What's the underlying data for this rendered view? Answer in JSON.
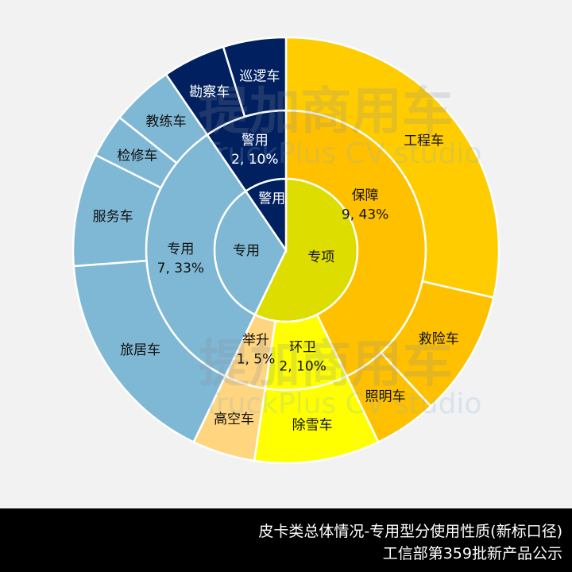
{
  "chart_data": {
    "type": "sunburst",
    "title": "皮卡类总体情况-专用型分使用性质(新标口径)",
    "subtitle": "工信部第359批新产品公示",
    "center": [
      360,
      315
    ],
    "radii": {
      "inner": 90,
      "middle": 176,
      "outer": 268
    },
    "total": 21,
    "levels": [
      {
        "name": "专项",
        "color": "#dddd00",
        "label_color": "#111111",
        "children": [
          {
            "name": "保障",
            "value": 9,
            "pct": "43%",
            "label": "9, 43%",
            "color": "#ffc000",
            "children": [
              {
                "name": "工程车",
                "value": 6,
                "color": "#ffcc00"
              },
              {
                "name": "救险车",
                "value": 2,
                "color": "#ffc000"
              },
              {
                "name": "照明车",
                "value": 1,
                "color": "#ffc000"
              }
            ]
          },
          {
            "name": "环卫",
            "value": 2,
            "pct": "10%",
            "label": "2, 10%",
            "color": "#ffff00",
            "children": [
              {
                "name": "除雪车",
                "value": 2,
                "color": "#ffff00"
              }
            ]
          },
          {
            "name": "举升",
            "value": 1,
            "pct": "5%",
            "label": "1, 5%",
            "color": "#ffd580",
            "children": [
              {
                "name": "高空车",
                "value": 1,
                "color": "#ffd580"
              }
            ]
          }
        ]
      },
      {
        "name": "专用",
        "color": "#7fb8d4",
        "label_color": "#111111",
        "children": [
          {
            "name": "专用",
            "value": 7,
            "pct": "33%",
            "label": "7, 33%",
            "color": "#7fb8d4",
            "children": [
              {
                "name": "旅居车",
                "value": 3.5,
                "color": "#7fb8d4"
              },
              {
                "name": "服务车",
                "value": 1.8,
                "color": "#7fb8d4"
              },
              {
                "name": "检修车",
                "value": 0.7,
                "color": "#7fb8d4"
              },
              {
                "name": "教练车",
                "value": 1,
                "color": "#7fb8d4"
              }
            ]
          }
        ]
      },
      {
        "name": "警用",
        "color": "#002060",
        "label_color": "#ffffff",
        "children": [
          {
            "name": "警用",
            "value": 2,
            "pct": "10%",
            "label": "2, 10%",
            "color": "#002060",
            "children": [
              {
                "name": "勘察车",
                "value": 1,
                "color": "#002060"
              },
              {
                "name": "巡逻车",
                "value": 1,
                "color": "#002060"
              }
            ]
          }
        ]
      }
    ],
    "watermark": {
      "cn": "提加商用车",
      "en": "TruckPlus CV studio"
    }
  },
  "footer": {
    "line1": "皮卡类总体情况-专用型分使用性质(新标口径)",
    "line2": "工信部第359批新产品公示"
  }
}
